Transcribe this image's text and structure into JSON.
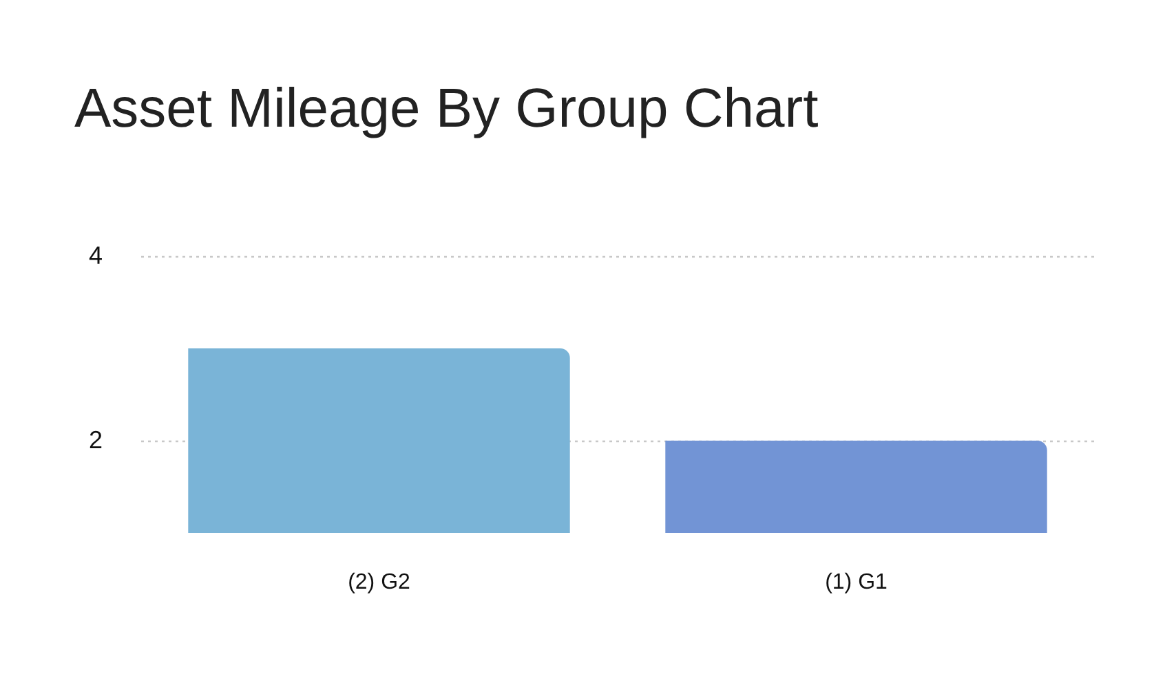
{
  "chart_data": {
    "type": "bar",
    "title": "Asset Mileage By Group Chart",
    "categories": [
      "(2) G2",
      "(1) G1"
    ],
    "values": [
      3,
      2
    ],
    "colors": [
      "#7ab4d7",
      "#7294d5"
    ],
    "ylim": [
      1,
      4
    ],
    "yticks": [
      2,
      4
    ],
    "grid": "y"
  }
}
